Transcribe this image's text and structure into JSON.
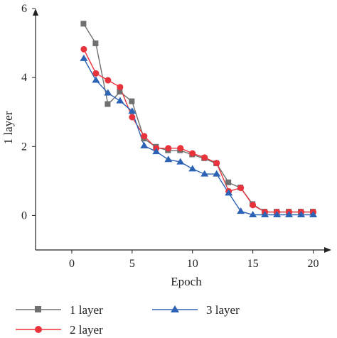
{
  "chart_data": {
    "type": "line",
    "title": "",
    "xlabel": "Epoch",
    "ylabel": "1 layer",
    "xlim": [
      -3,
      21.5
    ],
    "ylim": [
      -1,
      6
    ],
    "x_ticks": [
      0,
      5,
      10,
      15,
      20
    ],
    "x_tick_labels": [
      "0",
      "5",
      "10",
      "15",
      "20"
    ],
    "y_ticks": [
      0,
      2,
      4,
      6
    ],
    "y_tick_labels": [
      "0",
      "2",
      "4",
      "6"
    ],
    "grid": false,
    "legend_position": "bottom",
    "x": [
      1,
      2,
      3,
      4,
      5,
      6,
      7,
      8,
      9,
      10,
      11,
      12,
      13,
      14,
      15,
      16,
      17,
      18,
      19,
      20
    ],
    "series": [
      {
        "name": "1 layer",
        "marker": "square",
        "color": "#707070",
        "values": [
          5.55,
          4.98,
          3.22,
          3.58,
          3.3,
          2.22,
          1.98,
          1.88,
          1.88,
          1.76,
          1.65,
          1.5,
          0.95,
          0.8,
          0.32,
          0.1,
          0.1,
          0.1,
          0.1,
          0.1
        ]
      },
      {
        "name": "2 layer",
        "marker": "circle",
        "color": "#e8333c",
        "values": [
          4.82,
          4.12,
          3.92,
          3.72,
          2.85,
          2.3,
          1.95,
          1.95,
          1.95,
          1.8,
          1.68,
          1.52,
          0.7,
          0.8,
          0.3,
          0.1,
          0.1,
          0.1,
          0.1,
          0.1
        ]
      },
      {
        "name": "3 layer",
        "marker": "triangle",
        "color": "#2d63b4",
        "values": [
          4.55,
          3.92,
          3.55,
          3.32,
          3.02,
          2.02,
          1.85,
          1.62,
          1.55,
          1.35,
          1.2,
          1.2,
          0.65,
          0.12,
          0.02,
          0.02,
          0.02,
          0.02,
          0.02,
          0.02
        ]
      }
    ]
  }
}
